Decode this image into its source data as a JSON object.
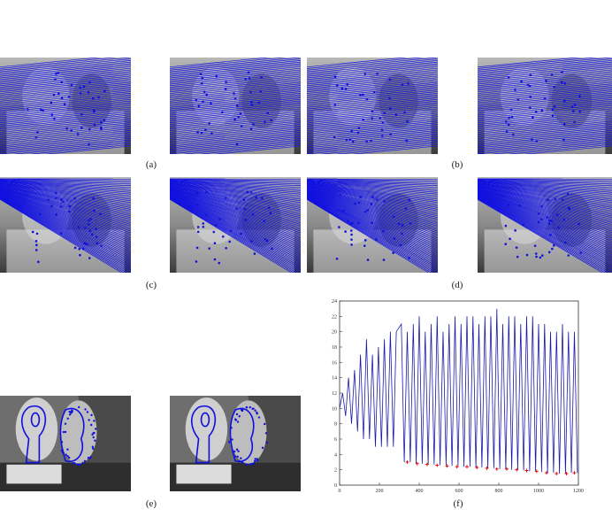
{
  "figure": {
    "captions": {
      "a": "(a)",
      "b": "(b)",
      "c": "(c)",
      "d": "(d)",
      "e": "(e)",
      "f": "(f)"
    }
  },
  "colors": {
    "lines": "#1010e0",
    "markers": "#e00000",
    "plot_line": "#1a1aa8"
  },
  "chart_data": {
    "type": "line",
    "x_ticks": [
      "0",
      "200",
      "400",
      "600",
      "800",
      "1000",
      "1200"
    ],
    "y_ticks": [
      "0",
      "2",
      "4",
      "6",
      "8",
      "10",
      "12",
      "14",
      "16",
      "18",
      "20",
      "22",
      "24"
    ],
    "xlim": [
      0,
      1200
    ],
    "ylim": [
      0,
      24
    ],
    "grid": false,
    "series": [
      {
        "peaks": [
          [
            15,
            12
          ],
          [
            45,
            14
          ],
          [
            75,
            15
          ],
          [
            105,
            17
          ],
          [
            135,
            19
          ],
          [
            165,
            17
          ],
          [
            195,
            18
          ],
          [
            225,
            19
          ],
          [
            255,
            20
          ],
          [
            285,
            20
          ],
          [
            310,
            21
          ],
          [
            340,
            20
          ],
          [
            370,
            21
          ],
          [
            400,
            22
          ],
          [
            430,
            20
          ],
          [
            460,
            21
          ],
          [
            490,
            22
          ],
          [
            520,
            20
          ],
          [
            550,
            21
          ],
          [
            580,
            22
          ],
          [
            610,
            21
          ],
          [
            640,
            22
          ],
          [
            670,
            22
          ],
          [
            700,
            21
          ],
          [
            730,
            22
          ],
          [
            760,
            22
          ],
          [
            790,
            23
          ],
          [
            820,
            21
          ],
          [
            850,
            22
          ],
          [
            880,
            22
          ],
          [
            910,
            21
          ],
          [
            940,
            22
          ],
          [
            970,
            22
          ],
          [
            1000,
            21
          ],
          [
            1030,
            21
          ],
          [
            1060,
            20
          ],
          [
            1090,
            20
          ],
          [
            1120,
            21
          ],
          [
            1150,
            20
          ],
          [
            1180,
            20
          ]
        ],
        "troughs": [
          [
            0,
            10
          ],
          [
            30,
            9
          ],
          [
            60,
            8
          ],
          [
            90,
            7
          ],
          [
            120,
            6
          ],
          [
            150,
            6
          ],
          [
            180,
            5
          ],
          [
            210,
            5
          ],
          [
            240,
            5
          ],
          [
            270,
            5
          ],
          [
            325,
            3
          ],
          [
            355,
            3
          ],
          [
            385,
            2.8
          ],
          [
            415,
            2.8
          ],
          [
            445,
            2.7
          ],
          [
            475,
            2.7
          ],
          [
            505,
            2.6
          ],
          [
            535,
            2.6
          ],
          [
            565,
            2.5
          ],
          [
            595,
            2.5
          ],
          [
            625,
            2.4
          ],
          [
            655,
            2.4
          ],
          [
            685,
            2.3
          ],
          [
            715,
            2.3
          ],
          [
            745,
            2.2
          ],
          [
            775,
            2.2
          ],
          [
            805,
            2.1
          ],
          [
            835,
            2.1
          ],
          [
            865,
            2.0
          ],
          [
            895,
            2.0
          ],
          [
            925,
            1.9
          ],
          [
            955,
            1.8
          ],
          [
            985,
            1.8
          ],
          [
            1015,
            1.7
          ],
          [
            1045,
            1.6
          ],
          [
            1075,
            1.6
          ],
          [
            1105,
            1.5
          ],
          [
            1135,
            1.5
          ],
          [
            1165,
            1.6
          ],
          [
            1195,
            1.6
          ]
        ]
      }
    ],
    "markers": [
      [
        340,
        3
      ],
      [
        390,
        2.8
      ],
      [
        440,
        2.7
      ],
      [
        490,
        2.6
      ],
      [
        540,
        2.5
      ],
      [
        590,
        2.4
      ],
      [
        640,
        2.4
      ],
      [
        690,
        2.3
      ],
      [
        740,
        2.2
      ],
      [
        790,
        2.1
      ],
      [
        840,
        2.1
      ],
      [
        890,
        2.0
      ],
      [
        940,
        1.9
      ],
      [
        990,
        1.8
      ],
      [
        1040,
        1.6
      ],
      [
        1090,
        1.5
      ],
      [
        1140,
        1.5
      ],
      [
        1180,
        1.6
      ]
    ]
  }
}
